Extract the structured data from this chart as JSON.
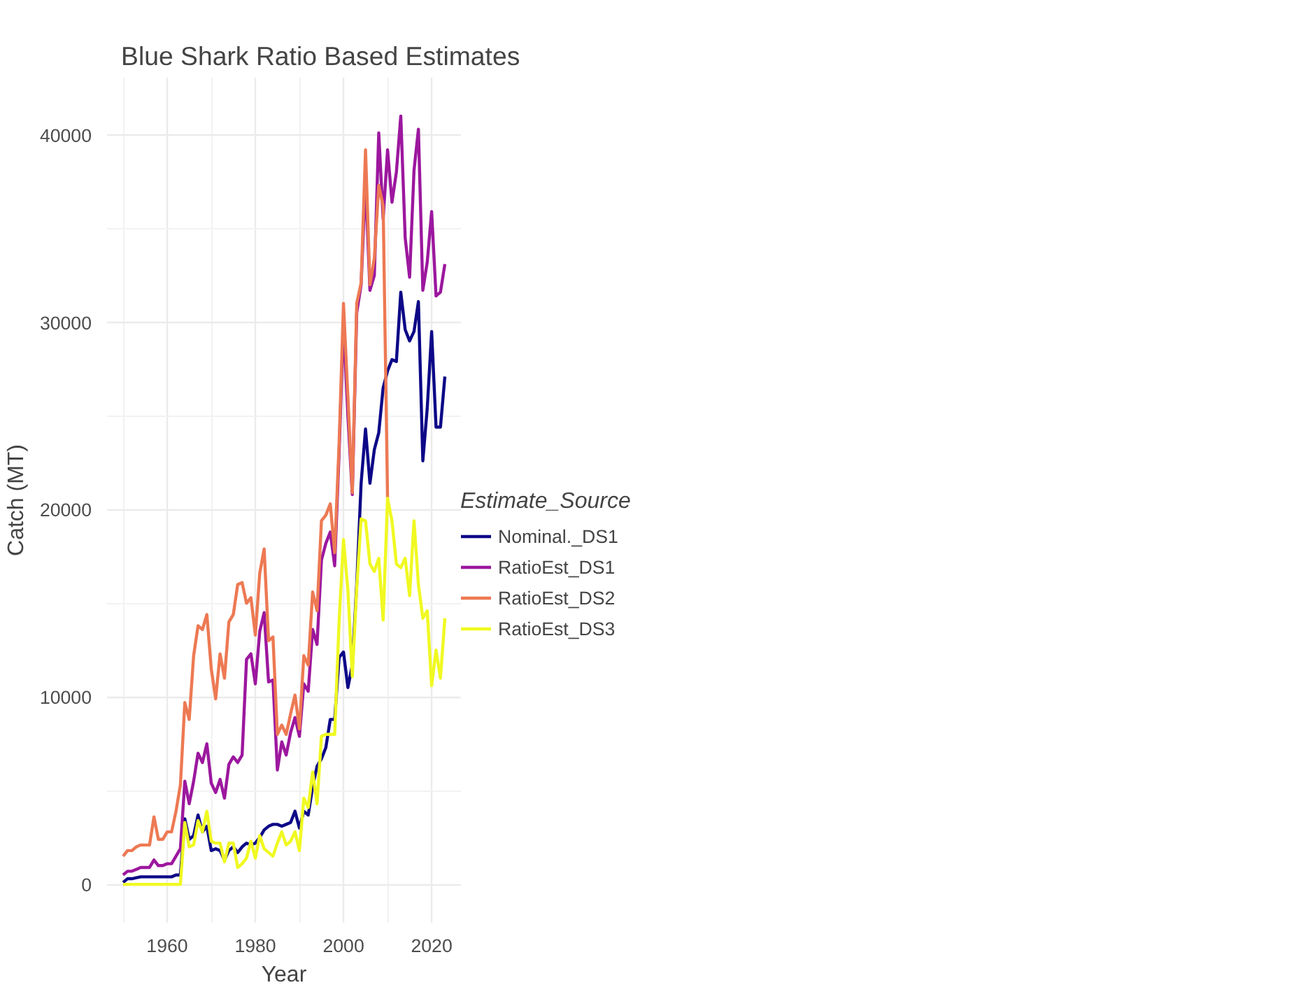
{
  "chart_data": {
    "type": "line",
    "title": "Blue Shark Ratio Based Estimates",
    "xlabel": "Year",
    "ylabel": "Catch (MT)",
    "legend_title": "Estimate_Source",
    "legend": "right",
    "grid": true,
    "x": [
      1950,
      1951,
      1952,
      1953,
      1954,
      1955,
      1956,
      1957,
      1958,
      1959,
      1960,
      1961,
      1962,
      1963,
      1964,
      1965,
      1966,
      1967,
      1968,
      1969,
      1970,
      1971,
      1972,
      1973,
      1974,
      1975,
      1976,
      1977,
      1978,
      1979,
      1980,
      1981,
      1982,
      1983,
      1984,
      1985,
      1986,
      1987,
      1988,
      1989,
      1990,
      1991,
      1992,
      1993,
      1994,
      1995,
      1996,
      1997,
      1998,
      1999,
      2000,
      2001,
      2002,
      2003,
      2004,
      2005,
      2006,
      2007,
      2008,
      2009,
      2010,
      2011,
      2012,
      2013,
      2014,
      2015,
      2016,
      2017,
      2018,
      2019,
      2020,
      2021,
      2022,
      2023
    ],
    "xlim": [
      1946.35,
      2026.65
    ],
    "xticks": [
      1960,
      1980,
      2000,
      2020
    ],
    "ylim": [
      -2050,
      43050
    ],
    "yticks": [
      0,
      10000,
      20000,
      30000,
      40000
    ],
    "series": [
      {
        "name": "Nominal._DS1",
        "color": "#0d0887",
        "values": [
          100,
          300,
          300,
          350,
          400,
          400,
          400,
          400,
          400,
          400,
          400,
          400,
          500,
          500,
          3500,
          2400,
          2600,
          3700,
          2800,
          3100,
          1800,
          1900,
          1800,
          1300,
          1800,
          2000,
          1700,
          2000,
          2200,
          2100,
          2200,
          2500,
          2900,
          3100,
          3200,
          3200,
          3100,
          3200,
          3300,
          3900,
          3000,
          3900,
          3700,
          5200,
          6300,
          6700,
          7300,
          8800,
          8800,
          12100,
          12400,
          10500,
          11700,
          16000,
          21400,
          24300,
          21400,
          23200,
          24100,
          26500,
          27400,
          28000,
          27900,
          31600,
          29600,
          29000,
          29500,
          31100,
          22600,
          25400,
          29500,
          24400,
          24400,
          27100
        ]
      },
      {
        "name": "RatioEst_DS1",
        "color": "#9c179e",
        "values": [
          500,
          700,
          700,
          800,
          900,
          900,
          900,
          1300,
          1000,
          1000,
          1100,
          1100,
          1500,
          1900,
          5500,
          4300,
          5500,
          7000,
          6500,
          7500,
          5400,
          4900,
          5600,
          4600,
          6400,
          6800,
          6500,
          6900,
          12000,
          12300,
          10700,
          13500,
          14500,
          10800,
          10900,
          6100,
          7600,
          6900,
          8100,
          8900,
          7900,
          10700,
          10300,
          13600,
          12800,
          17300,
          18200,
          18800,
          17000,
          23000,
          29900,
          25000,
          20800,
          30500,
          32000,
          37500,
          31700,
          32500,
          40100,
          35500,
          39200,
          36400,
          38000,
          41000,
          34500,
          32400,
          38100,
          40300,
          31700,
          33200,
          35900,
          31400,
          31600,
          33100
        ]
      },
      {
        "name": "RatioEst_DS2",
        "color": "#ed7953",
        "values": [
          1500,
          1800,
          1800,
          2000,
          2100,
          2100,
          2100,
          3600,
          2400,
          2400,
          2800,
          2800,
          3900,
          5300,
          9700,
          8800,
          12200,
          13800,
          13600,
          14400,
          11500,
          9900,
          12300,
          11000,
          14000,
          14400,
          16000,
          16100,
          15000,
          15300,
          13300,
          16600,
          17900,
          13000,
          13200,
          8000,
          8500,
          8000,
          9100,
          10100,
          8300,
          12200,
          11700,
          15600,
          14600,
          19400,
          19700,
          20300,
          17700,
          23500,
          31000,
          26000,
          20900,
          31000,
          32100,
          39200,
          32000,
          33400,
          37300,
          36200,
          20600,
          null,
          null,
          null,
          null,
          null,
          null,
          null,
          null,
          null,
          null,
          null,
          null,
          null
        ]
      },
      {
        "name": "RatioEst_DS3",
        "color": "#f0f921",
        "values": [
          0,
          0,
          0,
          0,
          0,
          0,
          0,
          0,
          0,
          0,
          0,
          0,
          0,
          0,
          3300,
          2000,
          2100,
          3400,
          2800,
          3900,
          2300,
          2200,
          2200,
          1200,
          2200,
          2200,
          900,
          1100,
          1400,
          2300,
          1400,
          2600,
          1900,
          1700,
          1500,
          2200,
          2800,
          2100,
          2300,
          2800,
          1800,
          4600,
          4100,
          6000,
          4300,
          7900,
          8000,
          8000,
          8000,
          14000,
          18400,
          15700,
          11100,
          15800,
          19500,
          19400,
          17100,
          16700,
          17400,
          14100,
          20600,
          19400,
          17100,
          16900,
          17400,
          15400,
          19400,
          16000,
          14200,
          14600,
          10600,
          12500,
          11000,
          14200
        ]
      }
    ]
  }
}
